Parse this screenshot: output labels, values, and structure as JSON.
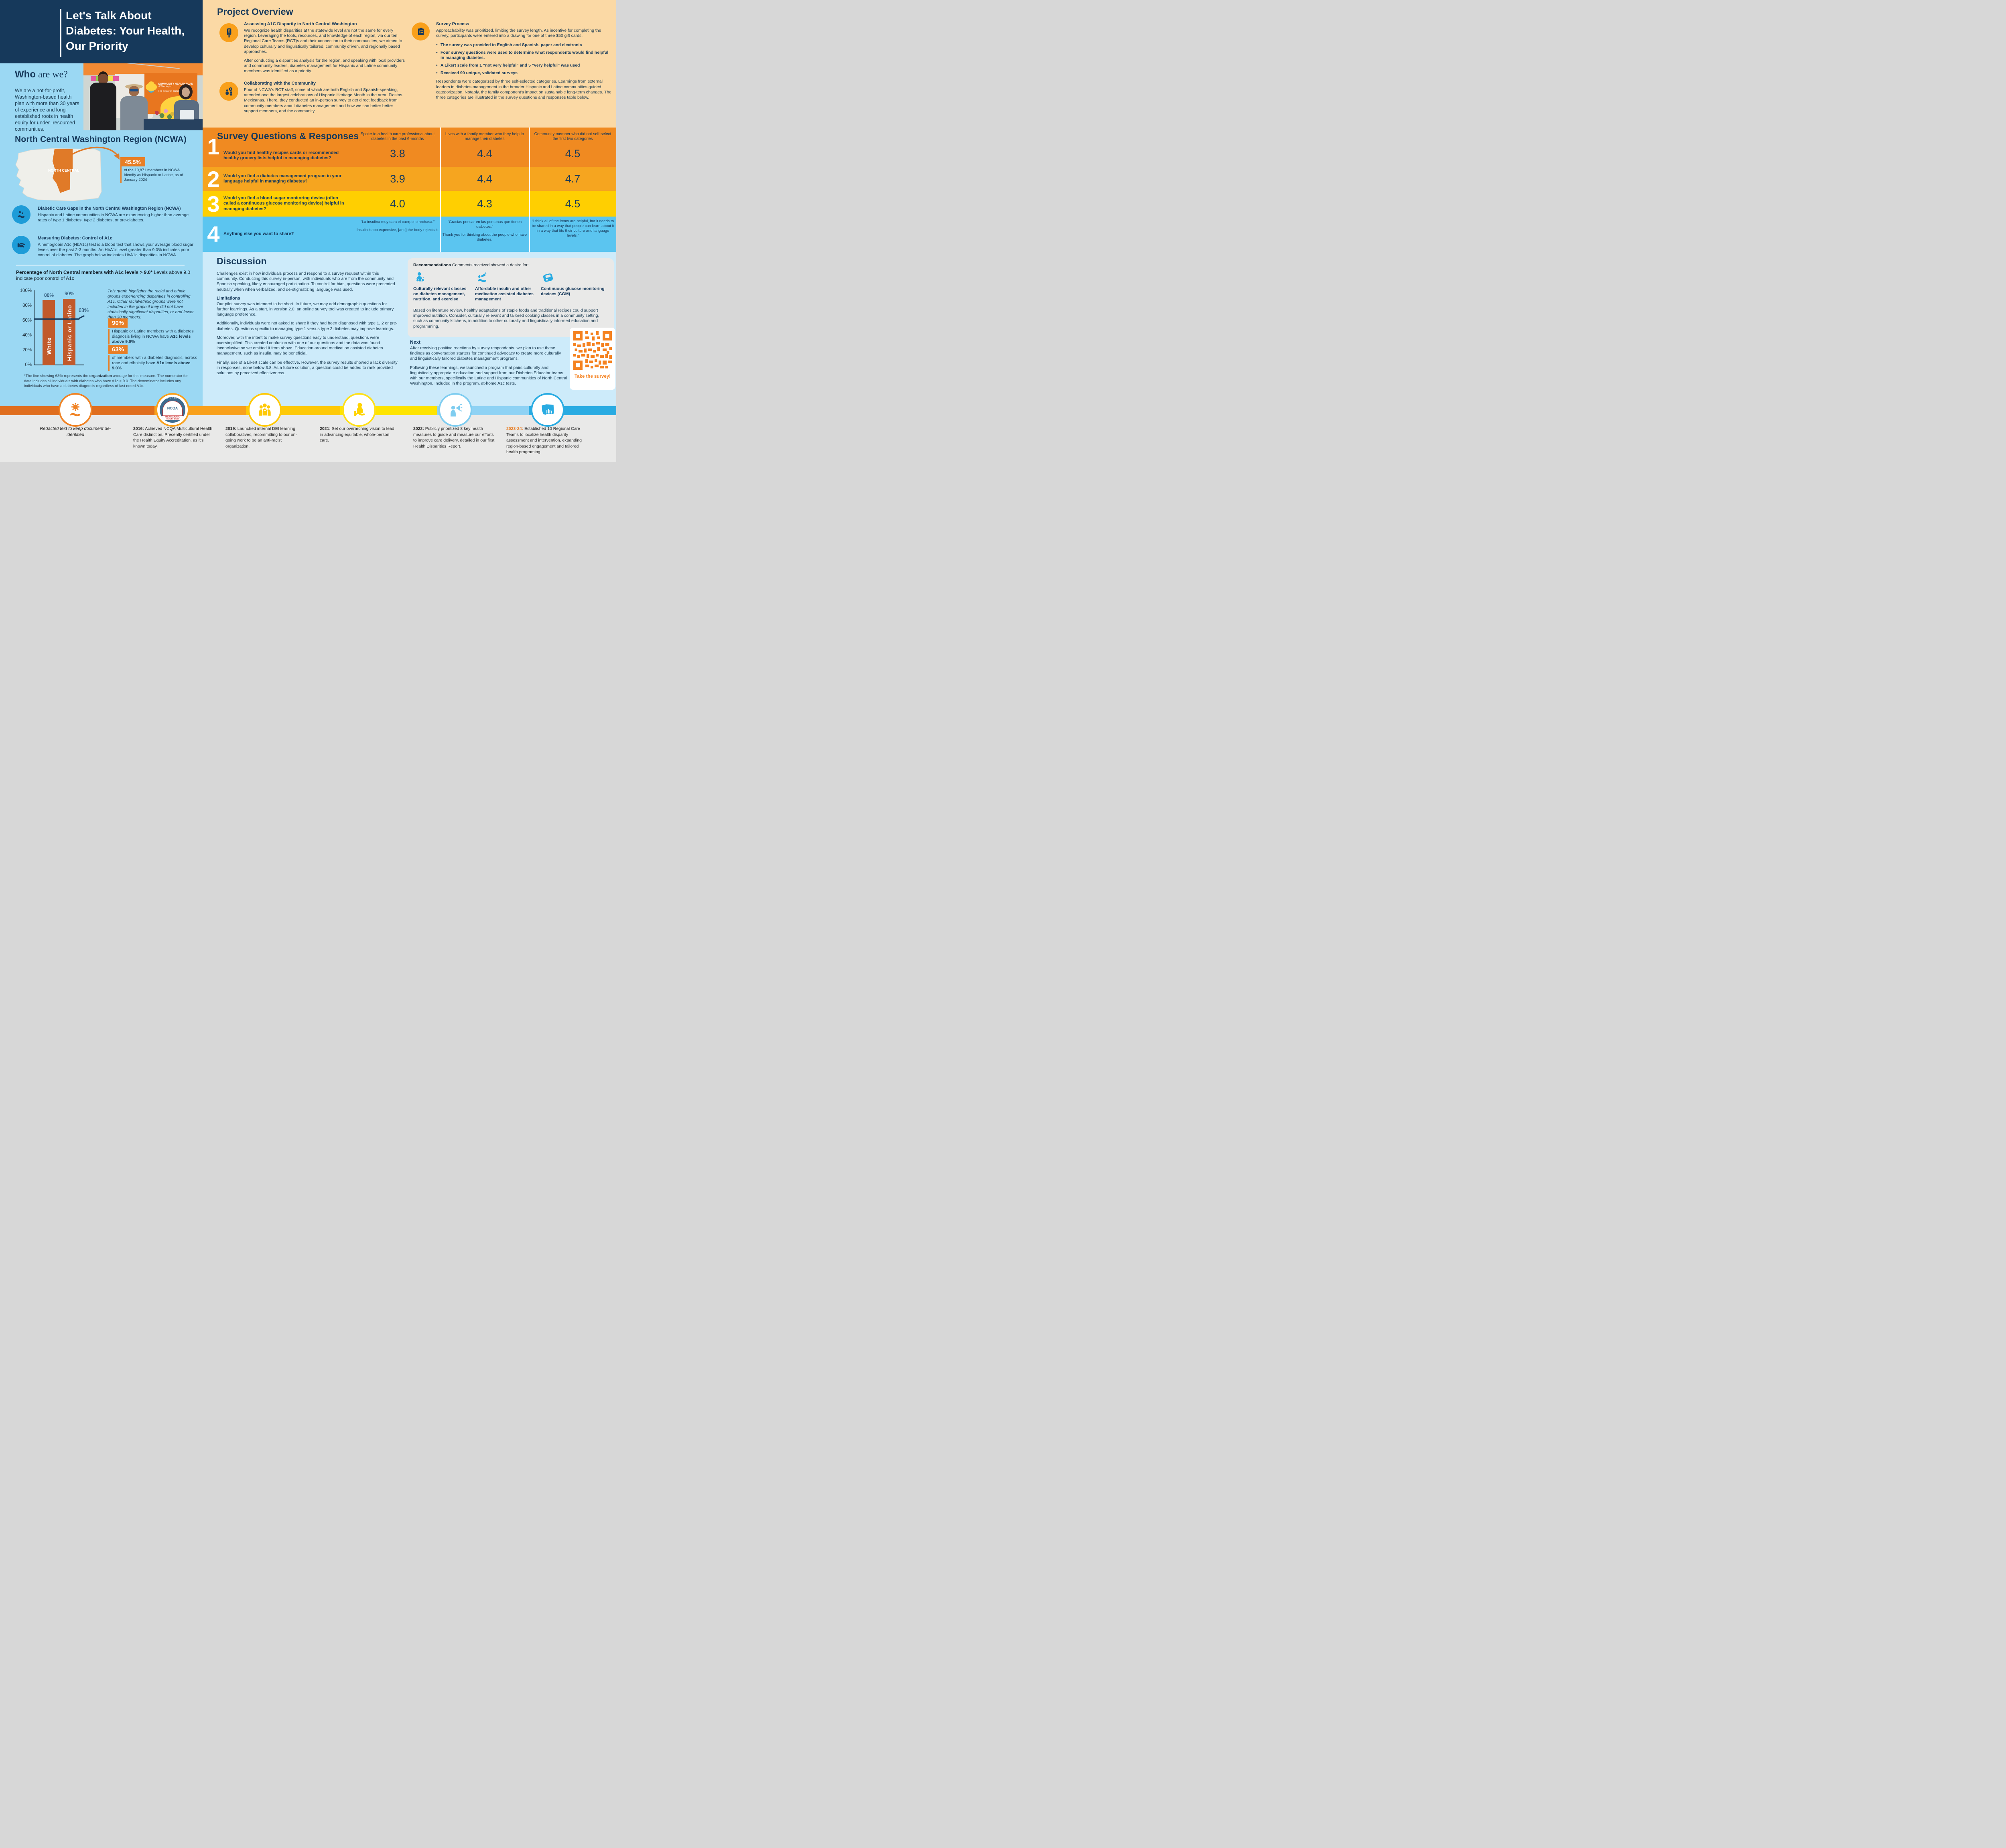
{
  "title": {
    "line1": "Let's Talk About",
    "line2": "Diabetes: Your Health,",
    "line3": "Our Priority"
  },
  "who": {
    "heading_bold": "Who",
    "heading_rest": " are we?",
    "body": "We are a not-for-profit, Washington-based health plan with more than 30 years of experience and long-established roots in health equity for under -resourced communities."
  },
  "photo": {
    "banner_line1": "COMMUNITY HEALTH PLAN",
    "banner_line2": "of Washington",
    "banner_line3": "The power of community"
  },
  "overview": {
    "heading": "Project Overview",
    "a1c_heading": "Assessing A1C Disparity in North Central Washington",
    "a1c_p1": "We recognize health disparities at the statewide level are not the same for every region. Leveraging the tools, resources, and knowledge of each region, via our ten Regional Care Teams (RCT)s and their connection to their communities, we aimed to develop culturally and linguistically tailored, community driven, and regionally based approaches.",
    "a1c_p2": "After conducting a disparities analysis for the region, and speaking with local providers and community leaders, diabetes management for Hispanic and Latine community members was identified as a priority.",
    "collab_heading": "Collaborating with the Community",
    "collab_p": "Four of NCWA's RCT staff, some of which are both English and Spanish-speaking, attended one the largest celebrations of Hispanic Heritage Month in the area, Fiestas Mexicanas. There, they conducted an in-person survey to get direct feedback from community members about diabetes management and how we can better better support members, and the community."
  },
  "survey_process": {
    "heading": "Survey Process",
    "intro": "Approachability was prioritized, limiting the survey length. As incentive for completing the survey, participants were entered into a drawing for one of three $50 gift cards.",
    "bullets": [
      "The survey was provided in English and Spanish, paper and electronic",
      "Four survey questions were used to determine what respondents would find helpful in managing diabetes.",
      "A Likert scale from 1 “not very helpful” and 5 “very helpful” was used",
      "Received 90 unique, validated surveys"
    ],
    "outro": "Respondents were categorized by three self-selected categories. Learnings from external leaders in diabetes management in the broader Hispanic and Latine communities guided categorization. Notably, the family component's impact on sustainable long-term changes. The three categories are illustrated in the survey questions and responses table below."
  },
  "ncwa": {
    "heading": "North Central Washington Region (NCWA)",
    "map_label": "NORTH CENTRAL",
    "stat_value": "45.5%",
    "stat_caption": "of the 10,871 members in NCWA identify as Hispanic or Latine, as of January 2024",
    "care_gaps_heading": "Diabetic Care Gaps in the North Central Washington Region (NCWA)",
    "care_gaps_body": "Hispanic and Latine communities in NCWA are experiencing higher than average rates of type 1 diabetes, type 2 diabetes, or pre-diabetes.",
    "measuring_heading": "Measuring Diabetes: Control of A1c",
    "measuring_body": "A hemoglobin A1c (HbA1c) test is a blood test that shows your average blood sugar levels over the past 2-3 months. An HbA1c level greater than 9.0% indicates poor control of diabetes. The graph below indicates HbA1c disparities in NCWA."
  },
  "chart_data": {
    "type": "bar",
    "title": "Percentage of North Central members with A1c levels > 9.0*",
    "subtitle": " Levels above 9.0 indicate poor control of A1c",
    "categories": [
      "White",
      "Hispanic or Latino"
    ],
    "values": [
      88,
      90
    ],
    "value_labels": [
      "88%",
      "90%"
    ],
    "reference_line": {
      "value": 63,
      "label": "63%"
    },
    "ylim": [
      0,
      100
    ],
    "yticks": [
      "100%",
      "80%",
      "60%",
      "40%",
      "20%",
      "0%"
    ],
    "bar_color": "#C15A2B"
  },
  "chart_extra": {
    "note": "This graph highlights the racial and ethnic groups experiencing disparities in controlling A1c. Other racial/ethnic groups were not included in the graph if they did not have statistically significant disparities, or had fewer than 30 members.",
    "callout1_label": "90%",
    "callout1_pre": "Hispanic or Latine  members with a diabetes diagnosis living in NCWA have ",
    "callout1_bold": "A1c levels above 9.0%",
    "callout2_label": "63%",
    "callout2_pre": "of  members with a diabetes diagnosis, across race and ethnicity have ",
    "callout2_bold": "A1c levels above 9.0%",
    "footnote_pre": "*The line showing 63% represents the ",
    "footnote_bold": "organization",
    "footnote_post": " average for this measure. The numerator for data includes all individuals with diabetes who have A1c > 9.0. The denominator includes any individuals who have a diabetes diagnosis regardless of last noted A1c."
  },
  "table": {
    "heading": "Survey Questions & Responses",
    "columns": [
      "Spoke to a health care professional about diabetes in the past 6-months",
      "Lives with a family member who they help to manage their diabetes",
      "Community member who did not self-select the first two categories"
    ],
    "rows": [
      {
        "number": "1",
        "question": "Would you find healthy recipes cards or recommended healthy grocery lists helpful in managing diabetes?",
        "values": [
          "3.8",
          "4.4",
          "4.5"
        ]
      },
      {
        "number": "2",
        "question": "Would you find a diabetes management program in your language helpful in managing diabetes?",
        "values": [
          "3.9",
          "4.4",
          "4.7"
        ]
      },
      {
        "number": "3",
        "question": "Would you find a blood sugar monitoring device (often called a continuous glucose monitoring device) helpful in managing diabetes?",
        "values": [
          "4.0",
          "4.3",
          "4.5"
        ]
      },
      {
        "number": "4",
        "question": "Anything else you want to share?",
        "quotes": {
          "c1_es": "“La insulina muy cara el cuerpo lo rechasa.”",
          "c1_en": "Insulin is too expensive, [and] the body rejects it.",
          "c2_es": "“Gracias pensar en las personas que tienen diabetes.”",
          "c2_en": "Thank you for thinking about the people who have diabetes.",
          "c3": "“I think all of the items are helpful, but it needs to be shared in a way that people can learn about it in a way that fits their culture and language levels.”"
        }
      }
    ]
  },
  "discussion": {
    "heading": "Discussion",
    "p1": "Challenges exist in how individuals process and respond to a survey request within this community. Conducting this survey in-person, with individuals who are from the community and Spanish speaking, likely encouraged participation. To control for bias, questions were presented neutrally when when verbalized, and de-stigmatizing language was used.",
    "limitations_heading": "Limitations",
    "p2": "Our pilot survey was intended to be short. In future, we may add demographic questions for further learnings. As a start, in version 2.0, an online survey tool was created to include primary language preference.",
    "p3": "Additionally, individuals were not asked to share if they had been diagnosed with type 1, 2 or pre-diabetes. Questions specific to managing type 1 versus type 2 diabetes may improve learnings.",
    "p4": "Moreover, with the intent to make survey questions easy to understand, questions were oversimplified. This created confusion with one of our questions and the data was found inconclusive so we omitted it from above. Education around medication assisted diabetes management, such as insulin, may be beneficial.",
    "p5": "Finally, use of a Likert scale can be effective. However, the survey results showed a lack diversity in responses, none below 3.8. As a future solution, a question could be added to rank provided solutions by perceived effectiveness."
  },
  "recommendations": {
    "label_bold": "Recommendations",
    "label_rest": " Comments received showed a desire for:",
    "items": [
      {
        "icon": "classes-icon",
        "text": "Culturally relevant classes on diabetes management, nutrition, and exercise"
      },
      {
        "icon": "insulin-icon",
        "text": "Affordable insulin and other medication assisted diabetes management"
      },
      {
        "icon": "cgm-icon",
        "text": "Continuous glucose monitoring devices (CGM)"
      }
    ],
    "paragraph": "Based on literature review, healthy adaptations of staple foods and traditional recipes could support improved nutrition. Consider, culturally relevant and tailored cooking classes in a community setting, such as community kitchens, in addition to other culturally and linguistically informed education and programming."
  },
  "next": {
    "heading": "Next",
    "p1": "After receiving positive reactions by survey respondents, we plan to use these findings as conversation starters for continued advocacy to create more culturally and linguistically tailored diabetes management programs.",
    "p2": "Following these learnings, we launched a program that pairs culturally and linguistically appropriate education and support from our Diabetes Educator teams with our members, specifically the Latine and Hispanic communities of North Central Washington. Included in the program, at-home A1c tests."
  },
  "qr": {
    "cta": "Take the survey!"
  },
  "timeline": {
    "items": [
      {
        "year": "",
        "text": "Redacted text to keep document de-identified",
        "accent": "#F08223"
      },
      {
        "year": "2016:",
        "text": " Achieved NCQA Multicultural Health Care distinction. Presently certified under the Health Equity Accreditation, as it's known today.",
        "accent": "#F9A01B",
        "badge": {
          "arc": "DISTINCTION",
          "org": "NCQA",
          "sub1": "MULTICULTURAL",
          "sub2": "HEALTH CARE"
        }
      },
      {
        "year": "2019:",
        "text": " Launched internal DEI learning collaboratives, recommitting to our on-going work to be an anti-racist organization.",
        "accent": "#FFC907"
      },
      {
        "year": "2021:",
        "text": " Set our overarching vision to lead in advancing equitable, whole-person care.",
        "accent": "#FFE01A"
      },
      {
        "year": "2022:",
        "text": " Publicly prioritized 8 key health measures to guide and measure our efforts to improve care delivery, detailed in our first Health Disparities Report.",
        "accent": "#7FCDF0"
      },
      {
        "year": "2023-24:",
        "text": " Established 10 Regional Care Teams to localize health disparity assessment and intervention, expanding region-based engagement and tailored health programing.",
        "accent": "#29ABE2",
        "year_color": "#E87E25"
      }
    ]
  }
}
